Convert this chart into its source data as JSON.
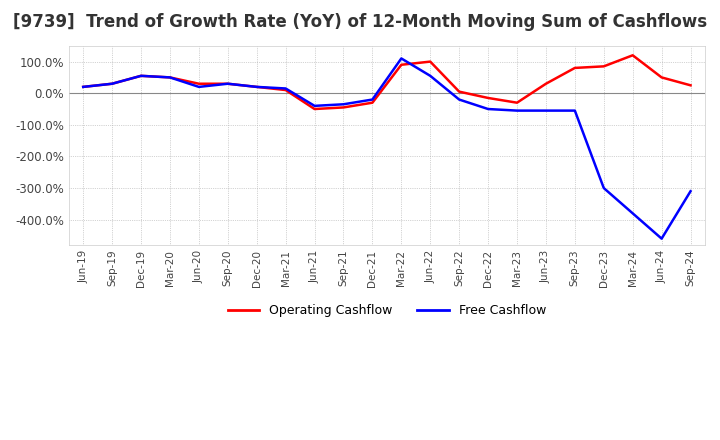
{
  "title": "[9739]  Trend of Growth Rate (YoY) of 12-Month Moving Sum of Cashflows",
  "title_fontsize": 12,
  "ylim": [
    -480,
    150
  ],
  "yticks": [
    100,
    0,
    -100,
    -200,
    -300,
    -400
  ],
  "background_color": "#ffffff",
  "plot_bg_color": "#ffffff",
  "grid_color": "#aaaaaa",
  "legend_labels": [
    "Operating Cashflow",
    "Free Cashflow"
  ],
  "line_colors": [
    "#ff0000",
    "#0000ff"
  ],
  "x_labels": [
    "Jun-19",
    "Sep-19",
    "Dec-19",
    "Mar-20",
    "Jun-20",
    "Sep-20",
    "Dec-20",
    "Mar-21",
    "Jun-21",
    "Sep-21",
    "Dec-21",
    "Mar-22",
    "Jun-22",
    "Sep-22",
    "Dec-22",
    "Mar-23",
    "Jun-23",
    "Sep-23",
    "Dec-23",
    "Mar-24",
    "Jun-24",
    "Sep-24"
  ],
  "operating_cashflow": [
    20,
    30,
    55,
    50,
    30,
    30,
    20,
    10,
    -50,
    -45,
    -30,
    90,
    100,
    5,
    -15,
    -30,
    30,
    80,
    85,
    120,
    50,
    25
  ],
  "free_cashflow": [
    20,
    30,
    55,
    50,
    20,
    30,
    20,
    15,
    -40,
    -35,
    -20,
    110,
    55,
    -20,
    -50,
    -55,
    -55,
    -55,
    -300,
    -380,
    -460,
    -310
  ]
}
